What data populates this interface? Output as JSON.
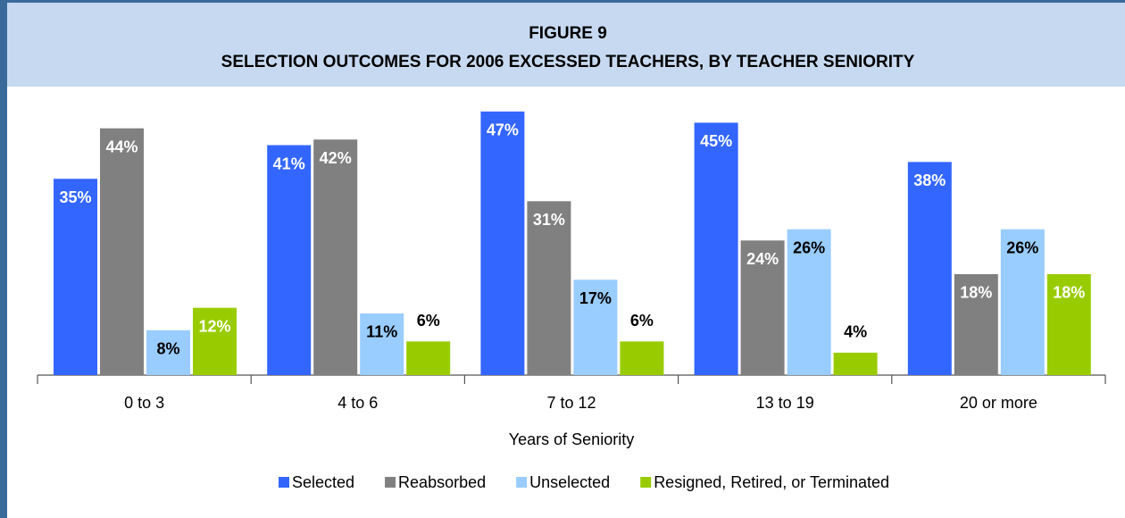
{
  "chart_data": {
    "type": "bar",
    "title": "FIGURE 9",
    "subtitle": "SELECTION OUTCOMES FOR 2006 EXCESSED TEACHERS, BY TEACHER SENIORITY",
    "x_label": "Years of Seniority",
    "categories": [
      "0 to 3",
      "4 to 6",
      "7 to 12",
      "13 to 19",
      "20 or more"
    ],
    "series": [
      {
        "name": "Selected",
        "color": "#3366ff",
        "label_color": "#ffffff",
        "values": [
          35,
          41,
          47,
          45,
          38
        ],
        "value_labels": [
          "35%",
          "41%",
          "47%",
          "45%",
          "38%"
        ]
      },
      {
        "name": "Reabsorbed",
        "color": "#808080",
        "label_color": "#ffffff",
        "values": [
          44,
          42,
          31,
          24,
          18
        ],
        "value_labels": [
          "44%",
          "42%",
          "31%",
          "24%",
          "18%"
        ]
      },
      {
        "name": "Unselected",
        "color": "#99ccff",
        "label_color": "#000000",
        "values": [
          8,
          11,
          17,
          26,
          26
        ],
        "value_labels": [
          "8%",
          "11%",
          "17%",
          "26%",
          "26%"
        ]
      },
      {
        "name": "Resigned, Retired, or Terminated",
        "color": "#99cc00",
        "label_color": "#ffffff",
        "values": [
          12,
          6,
          6,
          4,
          18
        ],
        "value_labels": [
          "12%",
          "6%",
          "6%",
          "4%",
          "18%"
        ]
      }
    ],
    "legend": "bottom"
  }
}
